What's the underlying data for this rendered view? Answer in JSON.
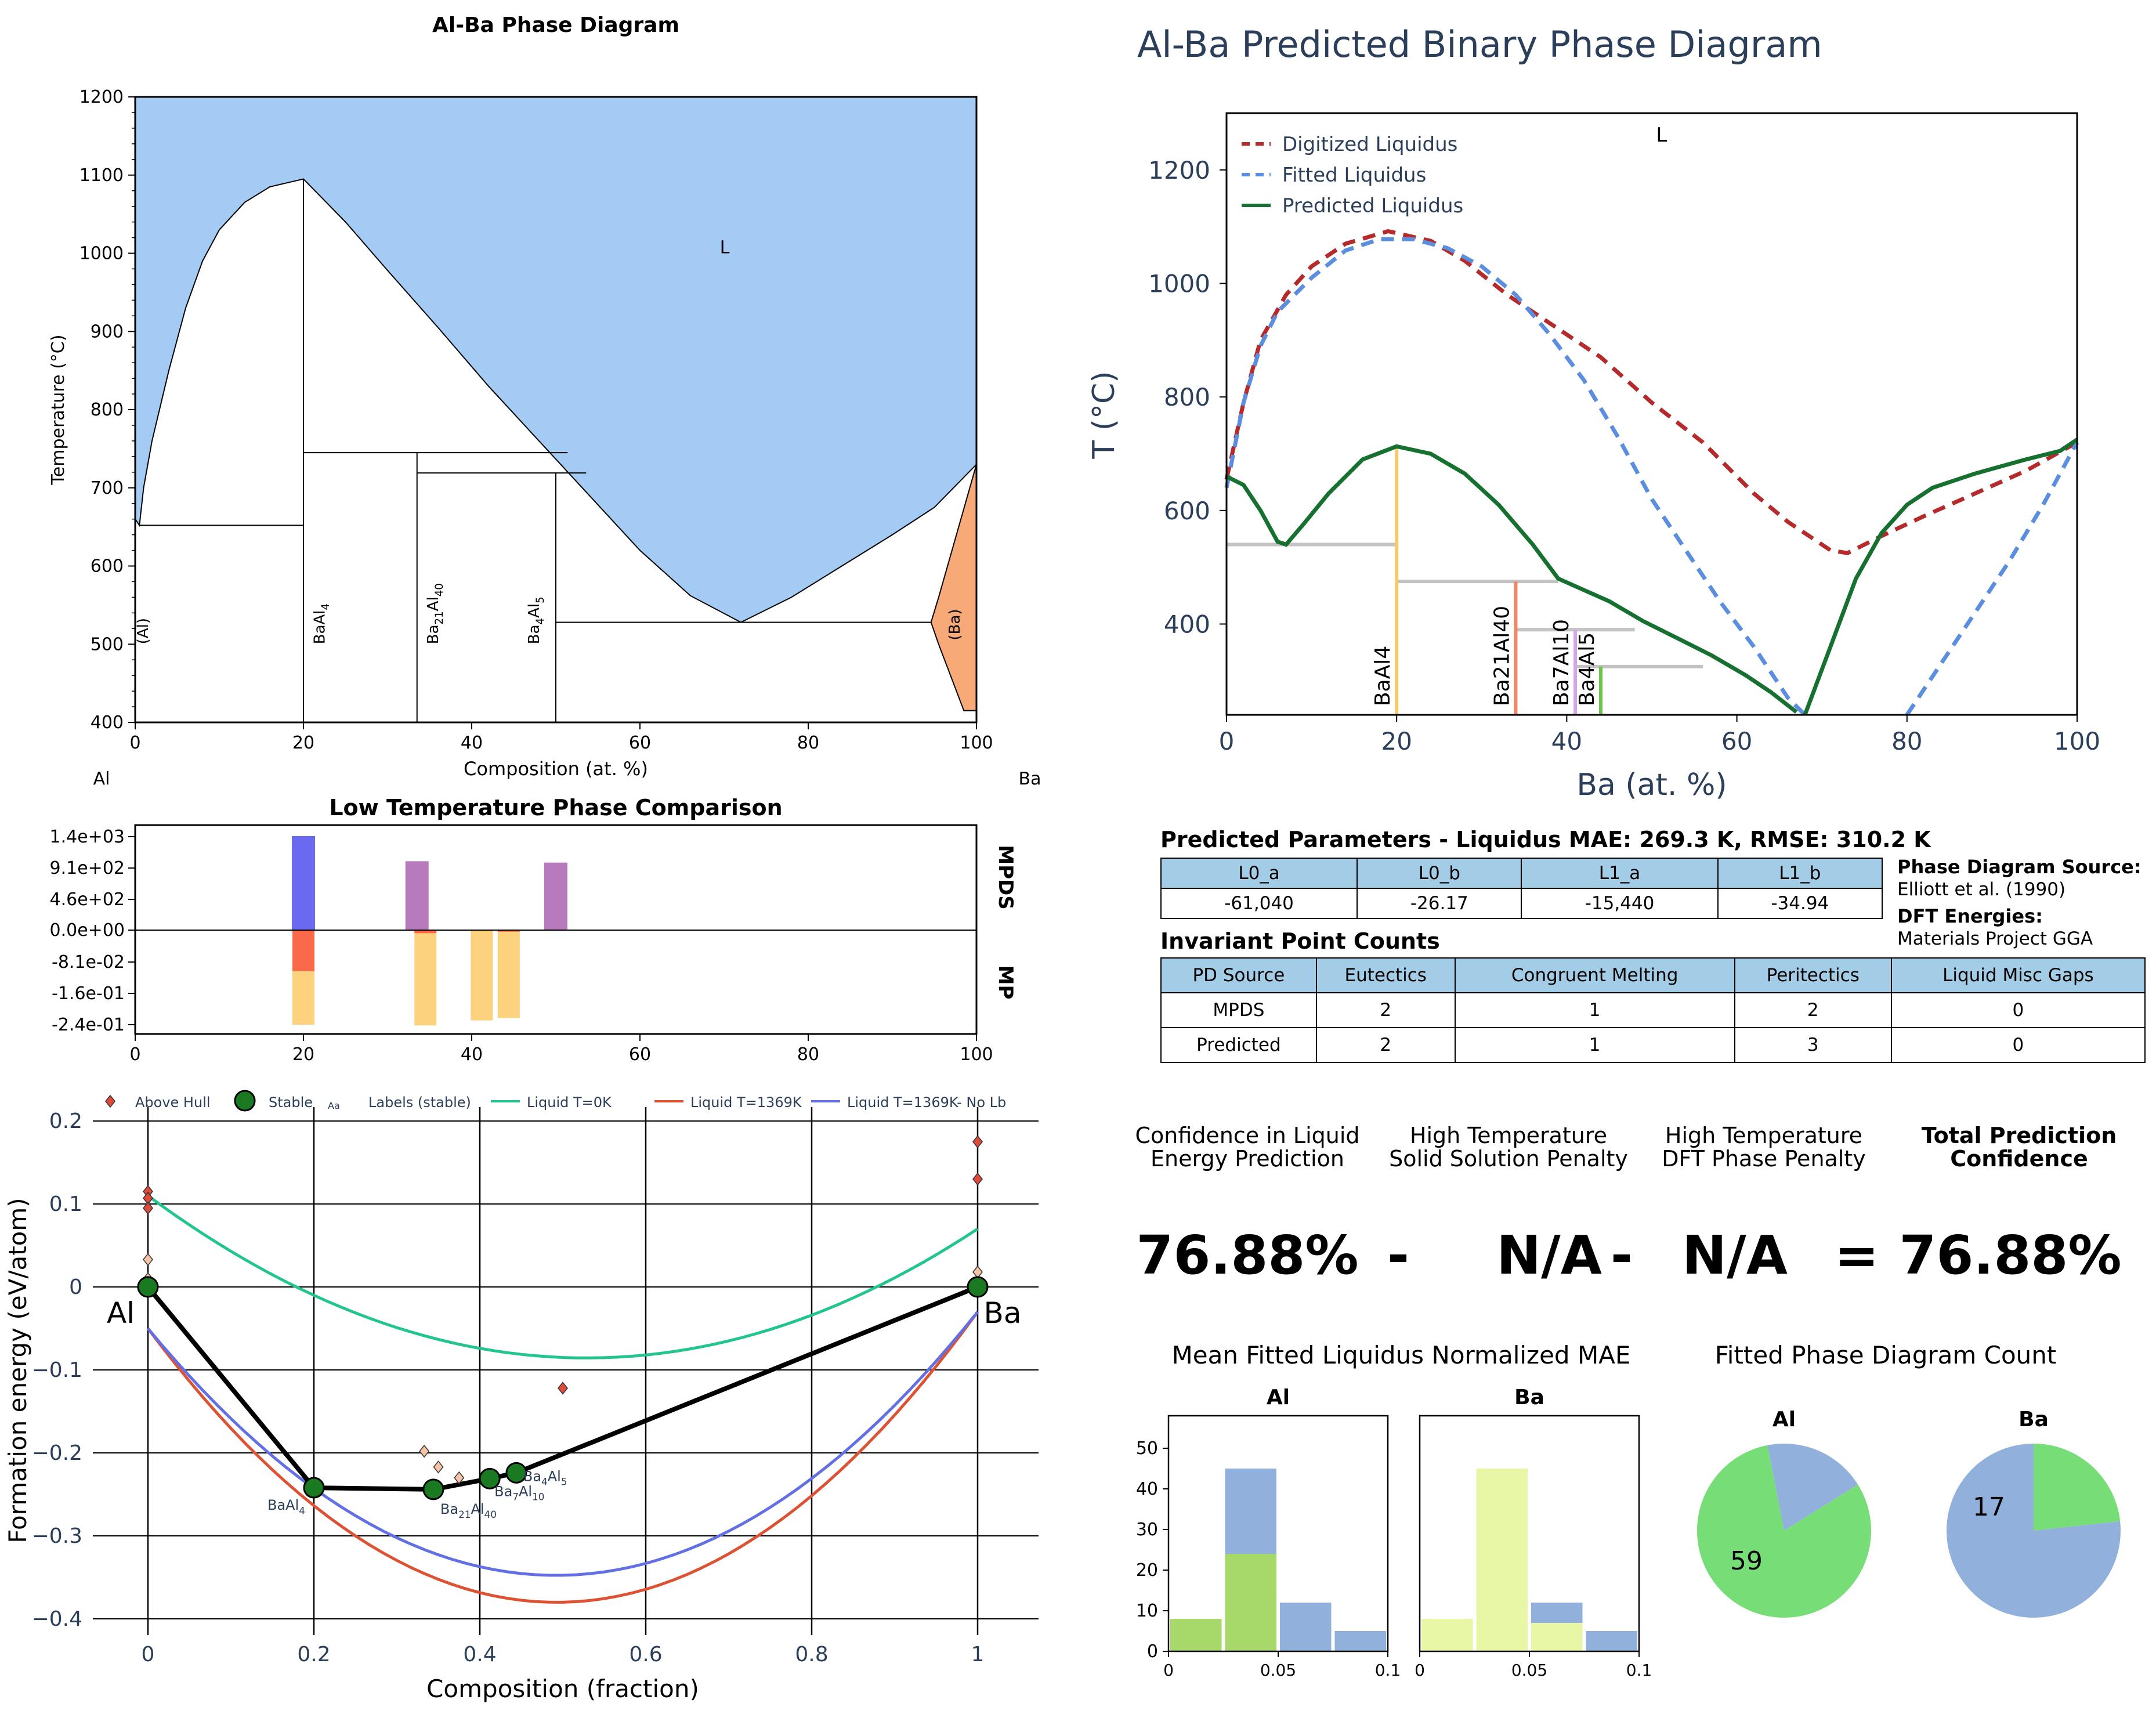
{
  "colors": {
    "liquid_region": "#a3cbf3",
    "ba_region": "#f7aa78",
    "mpds_baal4": "#6a6af0",
    "mpds_other": "#b77bbd",
    "mp_red": "#fa6a48",
    "mp_orange": "#fdd27f",
    "digitized_liquidus": "#b52a2a",
    "fitted_liquidus": "#5b8ede",
    "predicted_liquidus": "#167030",
    "tie_line": "#c3c3c3",
    "baal4_line": "#f6c96e",
    "ba21al40_line": "#f08866",
    "ba7al10_line": "#d3a6e8",
    "ba4al5_line": "#6cc34e",
    "liquid_0k": "#22c48f",
    "liquid_1369k": "#de5234",
    "liquid_1369k_nolb": "#6370e3",
    "hist_green": "#a6d96a",
    "hist_blue": "#91b1dc",
    "hist_yellow": "#e8f7a6",
    "pie_green": "#77de77",
    "pie_blue": "#91b1dc",
    "table_header": "#a3cde6",
    "title_dark": "#2b3e5a"
  },
  "chart_data": [
    {
      "id": "phase_diagram",
      "type": "area",
      "title": "Al-Ba Phase Diagram",
      "xlabel": "Composition (at. %)",
      "ylabel": "Temperature (°C)",
      "xlim": [
        0,
        100
      ],
      "ylim": [
        400,
        1200
      ],
      "xticks": [
        "0",
        "20",
        "40",
        "60",
        "80",
        "100"
      ],
      "yticks": [
        "400",
        "500",
        "600",
        "700",
        "800",
        "900",
        "1000",
        "1100",
        "1200"
      ],
      "left_element": "Al",
      "right_element": "Ba",
      "liquid_label": "L",
      "liquid_boundary": [
        [
          0,
          660
        ],
        [
          0.5,
          652
        ],
        [
          1,
          700
        ],
        [
          2,
          760
        ],
        [
          4,
          850
        ],
        [
          6,
          930
        ],
        [
          8,
          990
        ],
        [
          10,
          1030
        ],
        [
          13,
          1065
        ],
        [
          16,
          1085
        ],
        [
          20,
          1095
        ],
        [
          25,
          1040
        ],
        [
          30,
          978
        ],
        [
          36,
          905
        ],
        [
          42,
          830
        ],
        [
          48,
          760
        ],
        [
          54,
          690
        ],
        [
          60,
          620
        ],
        [
          66,
          562
        ],
        [
          72,
          528
        ],
        [
          78,
          560
        ],
        [
          84,
          600
        ],
        [
          90,
          640
        ],
        [
          95,
          675
        ],
        [
          100,
          730
        ]
      ],
      "ba_solid_region": [
        [
          94.6,
          528
        ],
        [
          95.5,
          560
        ],
        [
          100,
          730
        ],
        [
          100,
          415
        ],
        [
          98.5,
          415
        ],
        [
          95.5,
          500
        ],
        [
          94.6,
          528
        ]
      ],
      "tie_lines": [
        {
          "y": 652,
          "x1": 0.5,
          "x2": 20
        },
        {
          "y": 745,
          "x1": 20,
          "x2": 51.4
        },
        {
          "y": 719,
          "x1": 33.5,
          "x2": 53.6
        },
        {
          "y": 528,
          "x1": 50,
          "x2": 94.6
        }
      ],
      "phase_lines": [
        {
          "x": 20,
          "y1": 400,
          "y2": 1095
        },
        {
          "x": 33.5,
          "y1": 400,
          "y2": 745
        },
        {
          "x": 50,
          "y1": 400,
          "y2": 719
        }
      ],
      "phase_labels": [
        {
          "text": "(Al)",
          "x": 1.5,
          "y": 500
        },
        {
          "text": "BaAl",
          "sub": "4",
          "x": 22.5,
          "y": 500
        },
        {
          "text": "Ba",
          "sub": "21",
          "mid": "Al",
          "sub2": "40",
          "x": 36,
          "y": 500
        },
        {
          "text": "Ba",
          "sub": "4",
          "mid": "Al",
          "sub2": "5",
          "x": 48,
          "y": 500
        },
        {
          "text": "(Ba)",
          "x": 98,
          "y": 505
        }
      ]
    },
    {
      "id": "predicted_phase_diagram",
      "type": "line",
      "title": "Al-Ba Predicted Binary Phase Diagram",
      "xlabel": "Ba (at. %)",
      "ylabel": "T (°C)",
      "xlim": [
        0,
        100
      ],
      "ylim": [
        240,
        1300
      ],
      "xticks": [
        "0",
        "20",
        "40",
        "60",
        "80",
        "100"
      ],
      "yticks": [
        "400",
        "600",
        "800",
        "1000",
        "1200"
      ],
      "liquid_label": "L",
      "legend": [
        "Digitized Liquidus",
        "Fitted Liquidus",
        "Predicted Liquidus"
      ],
      "series": [
        {
          "name": "Digitized Liquidus",
          "style": "dashed",
          "points": [
            [
              0,
              655
            ],
            [
              2,
              790
            ],
            [
              4,
              900
            ],
            [
              7,
              980
            ],
            [
              10,
              1030
            ],
            [
              14,
              1070
            ],
            [
              19,
              1092
            ],
            [
              24,
              1075
            ],
            [
              28,
              1040
            ],
            [
              33,
              980
            ],
            [
              38,
              930
            ],
            [
              44,
              870
            ],
            [
              50,
              790
            ],
            [
              56,
              720
            ],
            [
              62,
              630
            ],
            [
              66,
              580
            ],
            [
              71,
              530
            ],
            [
              73,
              525
            ],
            [
              77,
              555
            ],
            [
              82,
              590
            ],
            [
              88,
              630
            ],
            [
              94,
              670
            ],
            [
              100,
              720
            ]
          ]
        },
        {
          "name": "Fitted Liquidus",
          "style": "dashed",
          "points": [
            [
              0,
              640
            ],
            [
              2,
              790
            ],
            [
              4,
              890
            ],
            [
              6,
              950
            ],
            [
              10,
              1010
            ],
            [
              14,
              1058
            ],
            [
              18,
              1078
            ],
            [
              22,
              1078
            ],
            [
              26,
              1062
            ],
            [
              30,
              1030
            ],
            [
              34,
              980
            ],
            [
              38,
              910
            ],
            [
              42,
              830
            ],
            [
              46,
              730
            ],
            [
              50,
              620
            ],
            [
              54,
              530
            ],
            [
              58,
              440
            ],
            [
              62,
              360
            ],
            [
              66,
              270
            ],
            [
              68,
              240
            ]
          ]
        },
        {
          "name": "Fitted Liquidus right",
          "style": "dashed",
          "points": [
            [
              80,
              240
            ],
            [
              84,
              330
            ],
            [
              88,
              420
            ],
            [
              92,
              510
            ],
            [
              96,
              610
            ],
            [
              100,
              720
            ]
          ]
        },
        {
          "name": "Predicted Liquidus",
          "style": "solid",
          "points": [
            [
              0,
              660
            ],
            [
              2,
              645
            ],
            [
              4,
              600
            ],
            [
              6,
              545
            ],
            [
              7,
              540
            ],
            [
              9,
              575
            ],
            [
              12,
              630
            ],
            [
              16,
              690
            ],
            [
              20,
              713
            ],
            [
              24,
              700
            ],
            [
              28,
              665
            ],
            [
              32,
              610
            ],
            [
              36,
              540
            ],
            [
              39,
              480
            ],
            [
              42,
              460
            ],
            [
              45,
              440
            ],
            [
              49,
              405
            ],
            [
              53,
              375
            ],
            [
              57,
              345
            ],
            [
              61,
              310
            ],
            [
              64,
              280
            ],
            [
              67,
              245
            ]
          ]
        },
        {
          "name": "Predicted Liquidus right",
          "style": "solid",
          "points": [
            [
              68,
              240
            ],
            [
              71,
              360
            ],
            [
              74,
              480
            ],
            [
              77,
              560
            ],
            [
              80,
              610
            ],
            [
              83,
              640
            ],
            [
              88,
              665
            ],
            [
              94,
              690
            ],
            [
              98,
              705
            ],
            [
              100,
              725
            ]
          ]
        }
      ],
      "tie_lines": [
        {
          "y": 540,
          "x1": 0,
          "x2": 20
        },
        {
          "y": 475,
          "x1": 20,
          "x2": 39
        },
        {
          "y": 390,
          "x1": 34,
          "x2": 48
        },
        {
          "y": 325,
          "x1": 41,
          "x2": 56
        }
      ],
      "phase_lines": [
        {
          "name": "BaAl4",
          "x": 20,
          "y_top": 713
        },
        {
          "name": "Ba21Al40",
          "x": 34,
          "y_top": 475
        },
        {
          "name": "Ba7Al10",
          "x": 41,
          "y_top": 390
        },
        {
          "name": "Ba4Al5",
          "x": 44,
          "y_top": 325
        }
      ]
    },
    {
      "id": "low_temp_comparison",
      "type": "bar",
      "title": "Low Temperature Phase Comparison",
      "xlim": [
        0,
        100
      ],
      "xticks": [
        "0",
        "20",
        "40",
        "60",
        "80",
        "100"
      ],
      "yticks": [
        "1.4e+03",
        "9.1e+02",
        "4.6e+02",
        "0.0e+00",
        "-8.1e-02",
        "-1.6e-01",
        "-2.4e-01"
      ],
      "top_label": "MPDS",
      "bottom_label": "MP",
      "mpds_bars": [
        {
          "x": 20,
          "value": 1368,
          "color": "mpds_baal4"
        },
        {
          "x": 33.5,
          "value": 1000,
          "color": "mpds_other"
        },
        {
          "x": 50,
          "value": 980,
          "color": "mpds_other"
        }
      ],
      "mp_bars": [
        {
          "x": 20,
          "value": -0.242,
          "red": -0.105
        },
        {
          "x": 34.5,
          "value": -0.244,
          "red": -0.008
        },
        {
          "x": 41.2,
          "value": -0.231,
          "red": 0
        },
        {
          "x": 44.4,
          "value": -0.225,
          "red": -0.004
        }
      ]
    },
    {
      "id": "convex_hull",
      "type": "scatter",
      "xlabel": "Composition (fraction)",
      "ylabel": "Formation energy (eV/atom)",
      "xlim": [
        -0.07,
        1.07
      ],
      "ylim": [
        -0.42,
        0.22
      ],
      "xticks": [
        "0",
        "0.2",
        "0.4",
        "0.6",
        "0.8",
        "1"
      ],
      "yticks": [
        "0.2",
        "0.1",
        "0",
        "−0.1",
        "−0.2",
        "−0.3",
        "−0.4"
      ],
      "legend": [
        "Above Hull",
        "Stable",
        "Labels (stable)",
        "Liquid T=0K",
        "Liquid T=1369K",
        "Liquid T=1369K- No Lb"
      ],
      "legend_label_sample": "Aa",
      "element_labels": {
        "left": "Al",
        "right": "Ba"
      },
      "stable": [
        [
          0,
          0
        ],
        [
          0.2,
          -0.242
        ],
        [
          0.344,
          -0.244
        ],
        [
          0.412,
          -0.231
        ],
        [
          0.444,
          -0.224
        ],
        [
          1,
          0
        ]
      ],
      "above_hull": [
        [
          0,
          0.115
        ],
        [
          0,
          0.107
        ],
        [
          0,
          0.095
        ],
        [
          0,
          0.033
        ],
        [
          0,
          0.01
        ],
        [
          0.333,
          -0.198
        ],
        [
          0.35,
          -0.217
        ],
        [
          0.375,
          -0.23
        ],
        [
          0.5,
          -0.122
        ],
        [
          1,
          0.175
        ],
        [
          1,
          0.13
        ],
        [
          1,
          0.018
        ],
        [
          1,
          0.003
        ]
      ],
      "stable_labels": [
        {
          "text": "BaAl",
          "sub": "4",
          "x": 0.2,
          "y": -0.242
        },
        {
          "text": "Ba",
          "sub": "21",
          "mid": "Al",
          "sub2": "40",
          "x": 0.344,
          "y": -0.244
        },
        {
          "text": "Ba",
          "sub": "7",
          "mid": "Al",
          "sub2": "10",
          "x": 0.412,
          "y": -0.231
        },
        {
          "text": "Ba",
          "sub": "4",
          "mid": "Al",
          "sub2": "5",
          "x": 0.444,
          "y": -0.224
        }
      ],
      "liquid_series": [
        {
          "name": "Liquid T=0K",
          "a": 0.11,
          "b": 0.07,
          "c": -0.7
        },
        {
          "name": "Liquid T=1369K",
          "a": -0.05,
          "b": -0.03,
          "c": -1.36
        },
        {
          "name": "Liquid T=1369K- No Lb",
          "a": -0.05,
          "b": -0.03,
          "c": -1.23
        }
      ]
    },
    {
      "id": "hist_al",
      "type": "bar",
      "title": "Al",
      "xlim": [
        0,
        0.1
      ],
      "ylim": [
        0,
        58
      ],
      "xticks": [
        "0",
        "0.05",
        "0.1"
      ],
      "yticks": [
        "0",
        "10",
        "20",
        "30",
        "40",
        "50"
      ],
      "bins": [
        [
          0,
          0.025
        ],
        [
          0.025,
          0.05
        ],
        [
          0.05,
          0.075
        ],
        [
          0.075,
          0.1
        ]
      ],
      "blue": [
        8,
        45,
        12,
        5
      ],
      "overlay": [
        8,
        24,
        0,
        0
      ]
    },
    {
      "id": "hist_ba",
      "type": "bar",
      "title": "Ba",
      "xlim": [
        0,
        0.1
      ],
      "ylim": [
        0,
        58
      ],
      "xticks": [
        "0",
        "0.05",
        "0.1"
      ],
      "bins": [
        [
          0,
          0.025
        ],
        [
          0.025,
          0.05
        ],
        [
          0.05,
          0.075
        ],
        [
          0.075,
          0.1
        ]
      ],
      "blue": [
        8,
        45,
        12,
        5
      ],
      "overlay": [
        8,
        45,
        7,
        0
      ]
    },
    {
      "id": "pie_al",
      "type": "pie",
      "title": "Al",
      "values": [
        59,
        14
      ],
      "label": "59"
    },
    {
      "id": "pie_ba",
      "type": "pie",
      "title": "Ba",
      "values": [
        17,
        56
      ],
      "label": "17"
    }
  ],
  "panels": {
    "hist_panel_title": "Mean Fitted Liquidus Normalized MAE",
    "pie_panel_title": "Fitted Phase Diagram Count"
  },
  "params": {
    "title": "Predicted Parameters - Liquidus MAE: 269.3 K, RMSE: 310.2 K",
    "headers": [
      "L0_a",
      "L0_b",
      "L1_a",
      "L1_b"
    ],
    "values": [
      "-61,040",
      "-26.17",
      "-15,440",
      "-34.94"
    ],
    "source_label": "Phase Diagram Source:",
    "source_value": "Elliott et al. (1990)",
    "dft_label": "DFT Energies:",
    "dft_value": "Materials Project GGA"
  },
  "invariants": {
    "title": "Invariant Point Counts",
    "headers": [
      "PD Source",
      "Eutectics",
      "Congruent Melting",
      "Peritectics",
      "Liquid Misc Gaps"
    ],
    "rows": [
      [
        "MPDS",
        "2",
        "1",
        "2",
        "0"
      ],
      [
        "Predicted",
        "2",
        "1",
        "3",
        "0"
      ]
    ]
  },
  "confidence": {
    "h1": [
      "Confidence in Liquid",
      "Energy Prediction"
    ],
    "h2": [
      "High Temperature",
      "Solid Solution Penalty"
    ],
    "h3": [
      "High Temperature",
      "DFT Phase Penalty"
    ],
    "h4": [
      "Total Prediction",
      "Confidence"
    ],
    "v1": "76.88%",
    "op1": "-",
    "v2": "N/A",
    "op2": "-",
    "v3": "N/A",
    "op3": "=",
    "v4": "76.88%"
  }
}
